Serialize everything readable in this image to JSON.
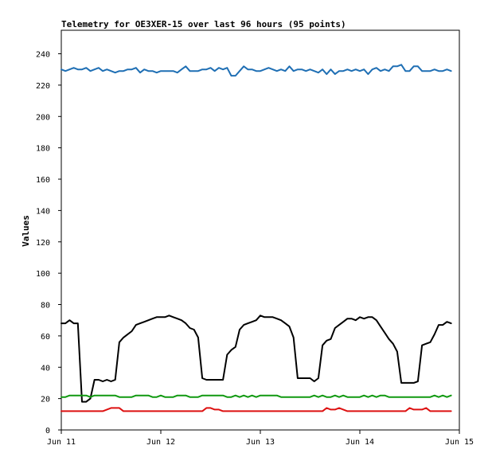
{
  "chart_data": {
    "type": "line",
    "title": "Telemetry for OE3XER-15 over last 96 hours (95 points)",
    "ylabel": "Values",
    "xlabel": "",
    "ylim": [
      0,
      255
    ],
    "yticks": [
      0,
      20,
      40,
      60,
      80,
      100,
      120,
      140,
      160,
      180,
      200,
      220,
      240
    ],
    "xlim": [
      "2024-06-11T00:00",
      "2024-06-15T00:00"
    ],
    "xticks": [
      {
        "value": "2024-06-11T00:00",
        "label": "Jun 11"
      },
      {
        "value": "2024-06-12T00:00",
        "label": "Jun 12"
      },
      {
        "value": "2024-06-13T00:00",
        "label": "Jun 13"
      },
      {
        "value": "2024-06-14T00:00",
        "label": "Jun 14"
      },
      {
        "value": "2024-06-15T00:00",
        "label": "Jun 15"
      }
    ],
    "grid": false,
    "x": [
      "2024-06-11T00:00",
      "2024-06-11T01:00",
      "2024-06-11T02:00",
      "2024-06-11T03:00",
      "2024-06-11T04:00",
      "2024-06-11T05:00",
      "2024-06-11T06:00",
      "2024-06-11T07:00",
      "2024-06-11T08:00",
      "2024-06-11T09:00",
      "2024-06-11T10:00",
      "2024-06-11T11:00",
      "2024-06-11T12:00",
      "2024-06-11T13:00",
      "2024-06-11T14:00",
      "2024-06-11T15:00",
      "2024-06-11T16:00",
      "2024-06-11T17:00",
      "2024-06-11T18:00",
      "2024-06-11T19:00",
      "2024-06-11T20:00",
      "2024-06-11T21:00",
      "2024-06-11T22:00",
      "2024-06-11T23:00",
      "2024-06-12T00:00",
      "2024-06-12T01:00",
      "2024-06-12T02:00",
      "2024-06-12T03:00",
      "2024-06-12T04:00",
      "2024-06-12T05:00",
      "2024-06-12T06:00",
      "2024-06-12T07:00",
      "2024-06-12T08:00",
      "2024-06-12T09:00",
      "2024-06-12T10:00",
      "2024-06-12T11:00",
      "2024-06-12T12:00",
      "2024-06-12T13:00",
      "2024-06-12T14:00",
      "2024-06-12T15:00",
      "2024-06-12T16:00",
      "2024-06-12T17:00",
      "2024-06-12T18:00",
      "2024-06-12T19:00",
      "2024-06-12T20:00",
      "2024-06-12T21:00",
      "2024-06-12T22:00",
      "2024-06-12T23:00",
      "2024-06-13T00:00",
      "2024-06-13T01:00",
      "2024-06-13T02:00",
      "2024-06-13T03:00",
      "2024-06-13T04:00",
      "2024-06-13T05:00",
      "2024-06-13T06:00",
      "2024-06-13T07:00",
      "2024-06-13T08:00",
      "2024-06-13T09:00",
      "2024-06-13T10:00",
      "2024-06-13T11:00",
      "2024-06-13T12:00",
      "2024-06-13T13:00",
      "2024-06-13T14:00",
      "2024-06-13T15:00",
      "2024-06-13T16:00",
      "2024-06-13T17:00",
      "2024-06-13T18:00",
      "2024-06-13T19:00",
      "2024-06-13T20:00",
      "2024-06-13T21:00",
      "2024-06-13T22:00",
      "2024-06-13T23:00",
      "2024-06-14T00:00",
      "2024-06-14T01:00",
      "2024-06-14T02:00",
      "2024-06-14T03:00",
      "2024-06-14T04:00",
      "2024-06-14T05:00",
      "2024-06-14T06:00",
      "2024-06-14T07:00",
      "2024-06-14T08:00",
      "2024-06-14T09:00",
      "2024-06-14T10:00",
      "2024-06-14T11:00",
      "2024-06-14T12:00",
      "2024-06-14T13:00",
      "2024-06-14T14:00",
      "2024-06-14T15:00",
      "2024-06-14T16:00",
      "2024-06-14T17:00",
      "2024-06-14T18:00",
      "2024-06-14T19:00",
      "2024-06-14T20:00",
      "2024-06-14T21:00",
      "2024-06-14T22:00"
    ],
    "series": [
      {
        "color": "#1f6fb4",
        "values": [
          230,
          229,
          230,
          231,
          230,
          230,
          231,
          229,
          230,
          231,
          229,
          230,
          229,
          228,
          229,
          229,
          230,
          230,
          231,
          228,
          230,
          229,
          229,
          228,
          229,
          229,
          229,
          229,
          228,
          230,
          232,
          229,
          229,
          229,
          230,
          230,
          231,
          229,
          231,
          230,
          231,
          226,
          226,
          229,
          232,
          230,
          230,
          229,
          229,
          230,
          231,
          230,
          229,
          230,
          229,
          232,
          229,
          230,
          230,
          229,
          230,
          229,
          228,
          230,
          227,
          230,
          227,
          229,
          229,
          230,
          229,
          230,
          229,
          230,
          227,
          230,
          231,
          229,
          230,
          229,
          232,
          232,
          233,
          229,
          229,
          232,
          232,
          229,
          229,
          229,
          230,
          229,
          229,
          230,
          229
        ]
      },
      {
        "color": "#000000",
        "values": [
          68,
          68,
          70,
          68,
          68,
          18,
          18,
          20,
          32,
          32,
          31,
          32,
          31,
          32,
          56,
          59,
          61,
          63,
          67,
          68,
          69,
          70,
          71,
          72,
          72,
          72,
          73,
          72,
          71,
          70,
          68,
          65,
          64,
          59,
          33,
          32,
          32,
          32,
          32,
          32,
          48,
          51,
          53,
          64,
          67,
          68,
          69,
          70,
          73,
          72,
          72,
          72,
          71,
          70,
          68,
          66,
          59,
          33,
          33,
          33,
          33,
          31,
          33,
          54,
          57,
          58,
          65,
          67,
          69,
          71,
          71,
          70,
          72,
          71,
          72,
          72,
          70,
          66,
          62,
          58,
          55,
          50,
          30,
          30,
          30,
          30,
          31,
          54,
          55,
          56,
          61,
          67,
          67,
          69,
          68
        ]
      },
      {
        "color": "#109910",
        "values": [
          21,
          21,
          22,
          22,
          22,
          22,
          22,
          21,
          22,
          22,
          22,
          22,
          22,
          22,
          21,
          21,
          21,
          21,
          22,
          22,
          22,
          22,
          21,
          21,
          22,
          21,
          21,
          21,
          22,
          22,
          22,
          21,
          21,
          21,
          22,
          22,
          22,
          22,
          22,
          22,
          21,
          21,
          22,
          21,
          22,
          21,
          22,
          21,
          22,
          22,
          22,
          22,
          22,
          21,
          21,
          21,
          21,
          21,
          21,
          21,
          21,
          22,
          21,
          22,
          21,
          21,
          22,
          21,
          22,
          21,
          21,
          21,
          21,
          22,
          21,
          22,
          21,
          22,
          22,
          21,
          21,
          21,
          21,
          21,
          21,
          21,
          21,
          21,
          21,
          21,
          22,
          21,
          22,
          21,
          22
        ]
      },
      {
        "color": "#dd1111",
        "values": [
          12,
          12,
          12,
          12,
          12,
          12,
          12,
          12,
          12,
          12,
          12,
          13,
          14,
          14,
          14,
          12,
          12,
          12,
          12,
          12,
          12,
          12,
          12,
          12,
          12,
          12,
          12,
          12,
          12,
          12,
          12,
          12,
          12,
          12,
          12,
          14,
          14,
          13,
          13,
          12,
          12,
          12,
          12,
          12,
          12,
          12,
          12,
          12,
          12,
          12,
          12,
          12,
          12,
          12,
          12,
          12,
          12,
          12,
          12,
          12,
          12,
          12,
          12,
          12,
          14,
          13,
          13,
          14,
          13,
          12,
          12,
          12,
          12,
          12,
          12,
          12,
          12,
          12,
          12,
          12,
          12,
          12,
          12,
          12,
          14,
          13,
          13,
          13,
          14,
          12,
          12,
          12,
          12,
          12,
          12
        ]
      }
    ]
  }
}
